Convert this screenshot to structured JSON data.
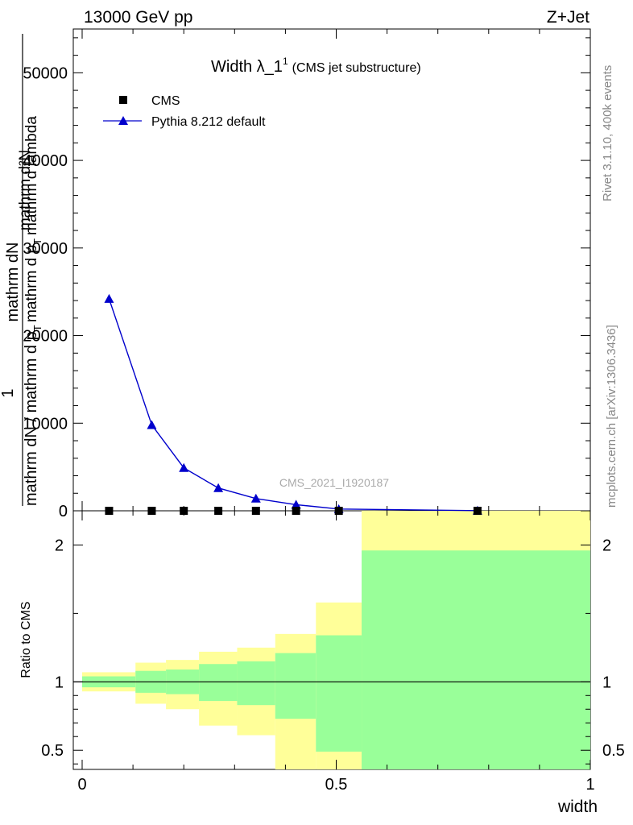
{
  "header": {
    "left": "13000 GeV pp",
    "right": "Z+Jet"
  },
  "plot_title": {
    "main": "Width λ_1",
    "sup": "1",
    "suffix": "(CMS jet substructure)"
  },
  "y_label_top": {
    "numerator_1": "1",
    "numerator_2": "mathrm dN",
    "denominator_1": "mathrm dN / mathrm d p",
    "denominator_2": "T",
    "overlay_num": "mathrm d²N",
    "overlay_den_1": "mathrm d p",
    "overlay_den_2": "T",
    "overlay_den_3": "mathrm d lambda"
  },
  "y_label_ratio": "Ratio to CMS",
  "x_label": "width",
  "watermark": "CMS_2021_I1920187",
  "side_text_1": "Rivet 3.1.10,  400k events",
  "side_text_2": "mcplots.cern.ch [arXiv:1306.3436]",
  "legend": {
    "cms": "CMS",
    "mc": "Pythia 8.212 default"
  },
  "colors": {
    "mc": "#0000cc",
    "band_outer": "#ffff99",
    "band_inner": "#99ff99"
  },
  "chart_data": {
    "type": "line",
    "top_panel": {
      "x": [
        0.053,
        0.137,
        0.2,
        0.268,
        0.342,
        0.421,
        0.505,
        0.778
      ],
      "series": [
        {
          "name": "CMS",
          "marker": "square",
          "values": [
            0,
            0,
            0,
            0,
            0,
            0,
            0,
            0
          ]
        },
        {
          "name": "Pythia 8.212 default",
          "marker": "triangle",
          "values": [
            24200,
            9800,
            4900,
            2600,
            1400,
            700,
            200,
            20
          ]
        }
      ],
      "ylim": [
        0,
        55000
      ],
      "yticks": [
        0,
        10000,
        20000,
        30000,
        40000,
        50000
      ],
      "ytick_labels": [
        "0",
        "10000",
        "20000",
        "30000",
        "40000",
        "50000"
      ]
    },
    "ratio_panel": {
      "bins": [
        {
          "x0": 0.0,
          "x1": 0.105,
          "outer": [
            0.93,
            1.07
          ],
          "inner": [
            0.96,
            1.04
          ]
        },
        {
          "x0": 0.105,
          "x1": 0.165,
          "outer": [
            0.84,
            1.14
          ],
          "inner": [
            0.92,
            1.08
          ]
        },
        {
          "x0": 0.165,
          "x1": 0.23,
          "outer": [
            0.8,
            1.16
          ],
          "inner": [
            0.91,
            1.09
          ]
        },
        {
          "x0": 0.23,
          "x1": 0.305,
          "outer": [
            0.68,
            1.22
          ],
          "inner": [
            0.86,
            1.13
          ]
        },
        {
          "x0": 0.305,
          "x1": 0.38,
          "outer": [
            0.61,
            1.25
          ],
          "inner": [
            0.83,
            1.15
          ]
        },
        {
          "x0": 0.38,
          "x1": 0.46,
          "outer": [
            0.36,
            1.35
          ],
          "inner": [
            0.73,
            1.21
          ]
        },
        {
          "x0": 0.46,
          "x1": 0.55,
          "outer": [
            0.36,
            1.58
          ],
          "inner": [
            0.49,
            1.34
          ]
        },
        {
          "x0": 0.55,
          "x1": 1.0,
          "outer": [
            0.36,
            2.25
          ],
          "inner": [
            0.36,
            1.96
          ]
        }
      ],
      "reference": 1,
      "ylim": [
        0.36,
        2.25
      ],
      "yticks": [
        0.5,
        1,
        2
      ],
      "ytick_labels": [
        "0.5",
        "1",
        "2"
      ]
    },
    "xlim": [
      0.0,
      1.0
    ],
    "xticks": [
      0,
      0.5,
      1
    ],
    "xtick_labels": [
      "0",
      "0.5",
      "1"
    ],
    "grid": false,
    "legend_position": "top-left"
  }
}
